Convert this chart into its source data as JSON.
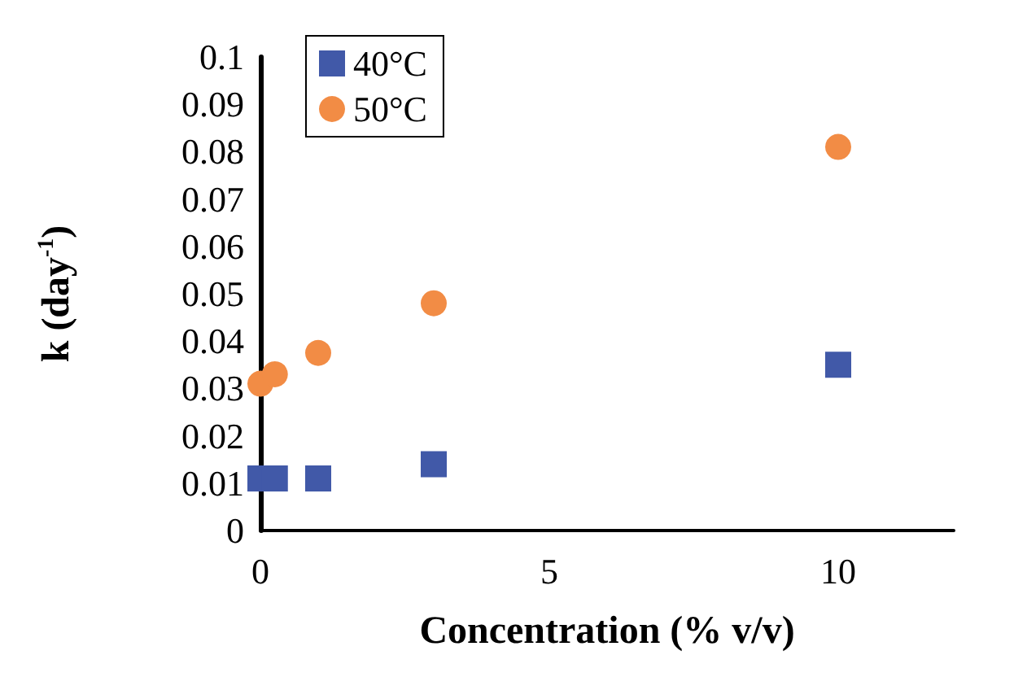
{
  "chart_data": {
    "type": "scatter",
    "xlabel": "Concentration (% v/v)",
    "ylabel": "k (day$^{-1}$)",
    "xlim": [
      0,
      12
    ],
    "xticks": [
      0,
      5,
      10
    ],
    "ylim": [
      0,
      0.1
    ],
    "yticks": [
      0,
      0.01,
      0.02,
      0.03,
      0.04,
      0.05,
      0.06,
      0.07,
      0.08,
      0.09,
      0.1
    ],
    "grid": false,
    "legend": "top left",
    "series": [
      {
        "name": "40°C",
        "color": "#4159a8",
        "marker": "square",
        "x": [
          0,
          0.25,
          1,
          3,
          10
        ],
        "values": [
          0.011,
          0.011,
          0.011,
          0.014,
          0.035
        ]
      },
      {
        "name": "50°C",
        "color": "#f28c45",
        "marker": "circle",
        "x": [
          0,
          0.25,
          1,
          3,
          10
        ],
        "values": [
          0.031,
          0.033,
          0.0375,
          0.048,
          0.081
        ]
      }
    ]
  }
}
